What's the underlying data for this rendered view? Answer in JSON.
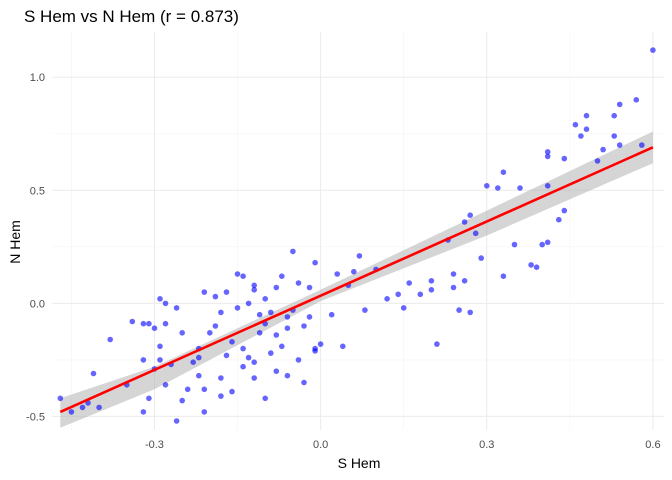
{
  "chart_data": {
    "type": "scatter",
    "title": "S Hem vs N Hem (r = 0.873)",
    "xlabel": "S Hem",
    "ylabel": "N Hem",
    "xlim": [
      -0.485,
      0.62
    ],
    "ylim": [
      -0.56,
      1.2
    ],
    "x_ticks": [
      -0.3,
      0.0,
      0.3,
      0.6
    ],
    "x_tick_labels": [
      "-0.3",
      "0.0",
      "0.3",
      "0.6"
    ],
    "y_ticks": [
      -0.5,
      0.0,
      0.5,
      1.0
    ],
    "y_tick_labels": [
      "-0.5",
      "0.0",
      "0.5",
      "1.0"
    ],
    "grid": true,
    "colors": {
      "points": "#0000ff",
      "fit_line": "#ff0000",
      "band": "#b3b3b3"
    },
    "fit_line": {
      "x": [
        -0.47,
        0.6
      ],
      "y": [
        -0.48,
        0.69
      ]
    },
    "confidence_band": {
      "x": [
        -0.47,
        -0.3,
        0.0,
        0.3,
        0.6
      ],
      "upper": [
        -0.42,
        -0.28,
        0.06,
        0.41,
        0.76
      ],
      "lower": [
        -0.55,
        -0.38,
        0.01,
        0.3,
        0.62
      ]
    },
    "points": [
      {
        "x": -0.47,
        "y": -0.42
      },
      {
        "x": -0.45,
        "y": -0.48
      },
      {
        "x": -0.43,
        "y": -0.46
      },
      {
        "x": -0.42,
        "y": -0.44
      },
      {
        "x": -0.41,
        "y": -0.31
      },
      {
        "x": -0.4,
        "y": -0.46
      },
      {
        "x": -0.38,
        "y": -0.16
      },
      {
        "x": -0.35,
        "y": -0.36
      },
      {
        "x": -0.34,
        "y": -0.08
      },
      {
        "x": -0.32,
        "y": -0.48
      },
      {
        "x": -0.32,
        "y": -0.25
      },
      {
        "x": -0.32,
        "y": -0.09
      },
      {
        "x": -0.31,
        "y": -0.42
      },
      {
        "x": -0.31,
        "y": -0.09
      },
      {
        "x": -0.3,
        "y": -0.29
      },
      {
        "x": -0.3,
        "y": -0.11
      },
      {
        "x": -0.29,
        "y": 0.02
      },
      {
        "x": -0.29,
        "y": -0.25
      },
      {
        "x": -0.29,
        "y": -0.19
      },
      {
        "x": -0.28,
        "y": -0.36
      },
      {
        "x": -0.28,
        "y": -0.09
      },
      {
        "x": -0.28,
        "y": 0.0
      },
      {
        "x": -0.27,
        "y": -0.27
      },
      {
        "x": -0.26,
        "y": -0.52
      },
      {
        "x": -0.26,
        "y": -0.02
      },
      {
        "x": -0.25,
        "y": -0.43
      },
      {
        "x": -0.25,
        "y": -0.13
      },
      {
        "x": -0.24,
        "y": -0.38
      },
      {
        "x": -0.23,
        "y": -0.26
      },
      {
        "x": -0.22,
        "y": -0.32
      },
      {
        "x": -0.22,
        "y": -0.24
      },
      {
        "x": -0.22,
        "y": -0.2
      },
      {
        "x": -0.21,
        "y": -0.48
      },
      {
        "x": -0.21,
        "y": -0.38
      },
      {
        "x": -0.21,
        "y": 0.05
      },
      {
        "x": -0.2,
        "y": -0.13
      },
      {
        "x": -0.19,
        "y": -0.1
      },
      {
        "x": -0.19,
        "y": 0.03
      },
      {
        "x": -0.18,
        "y": -0.41
      },
      {
        "x": -0.18,
        "y": -0.33
      },
      {
        "x": -0.18,
        "y": -0.04
      },
      {
        "x": -0.17,
        "y": -0.23
      },
      {
        "x": -0.17,
        "y": 0.05
      },
      {
        "x": -0.16,
        "y": -0.39
      },
      {
        "x": -0.16,
        "y": -0.17
      },
      {
        "x": -0.15,
        "y": -0.02
      },
      {
        "x": -0.15,
        "y": 0.13
      },
      {
        "x": -0.14,
        "y": -0.28
      },
      {
        "x": -0.14,
        "y": -0.2
      },
      {
        "x": -0.14,
        "y": 0.12
      },
      {
        "x": -0.13,
        "y": 0.0
      },
      {
        "x": -0.13,
        "y": -0.24
      },
      {
        "x": -0.12,
        "y": -0.33
      },
      {
        "x": -0.12,
        "y": -0.26
      },
      {
        "x": -0.12,
        "y": 0.06
      },
      {
        "x": -0.12,
        "y": 0.08
      },
      {
        "x": -0.11,
        "y": -0.05
      },
      {
        "x": -0.11,
        "y": -0.13
      },
      {
        "x": -0.1,
        "y": -0.42
      },
      {
        "x": -0.1,
        "y": -0.09
      },
      {
        "x": -0.1,
        "y": 0.02
      },
      {
        "x": -0.09,
        "y": -0.22
      },
      {
        "x": -0.09,
        "y": -0.04
      },
      {
        "x": -0.08,
        "y": -0.3
      },
      {
        "x": -0.08,
        "y": 0.07
      },
      {
        "x": -0.08,
        "y": -0.14
      },
      {
        "x": -0.07,
        "y": 0.12
      },
      {
        "x": -0.07,
        "y": -0.19
      },
      {
        "x": -0.06,
        "y": -0.32
      },
      {
        "x": -0.06,
        "y": -0.06
      },
      {
        "x": -0.06,
        "y": -0.11
      },
      {
        "x": -0.05,
        "y": 0.23
      },
      {
        "x": -0.05,
        "y": -0.03
      },
      {
        "x": -0.04,
        "y": -0.25
      },
      {
        "x": -0.04,
        "y": 0.09
      },
      {
        "x": -0.03,
        "y": -0.35
      },
      {
        "x": -0.03,
        "y": -0.1
      },
      {
        "x": -0.02,
        "y": 0.07
      },
      {
        "x": -0.02,
        "y": -0.06
      },
      {
        "x": -0.01,
        "y": 0.18
      },
      {
        "x": -0.01,
        "y": -0.2
      },
      {
        "x": -0.01,
        "y": -0.21
      },
      {
        "x": 0.0,
        "y": -0.18
      },
      {
        "x": 0.02,
        "y": -0.05
      },
      {
        "x": 0.03,
        "y": 0.13
      },
      {
        "x": 0.04,
        "y": -0.19
      },
      {
        "x": 0.05,
        "y": 0.08
      },
      {
        "x": 0.06,
        "y": 0.14
      },
      {
        "x": 0.07,
        "y": 0.21
      },
      {
        "x": 0.08,
        "y": -0.03
      },
      {
        "x": 0.1,
        "y": 0.15
      },
      {
        "x": 0.12,
        "y": 0.02
      },
      {
        "x": 0.14,
        "y": 0.04
      },
      {
        "x": 0.15,
        "y": -0.02
      },
      {
        "x": 0.16,
        "y": 0.09
      },
      {
        "x": 0.18,
        "y": 0.04
      },
      {
        "x": 0.2,
        "y": 0.06
      },
      {
        "x": 0.2,
        "y": 0.1
      },
      {
        "x": 0.21,
        "y": -0.18
      },
      {
        "x": 0.23,
        "y": 0.28
      },
      {
        "x": 0.24,
        "y": 0.13
      },
      {
        "x": 0.24,
        "y": 0.07
      },
      {
        "x": 0.25,
        "y": -0.03
      },
      {
        "x": 0.26,
        "y": 0.1
      },
      {
        "x": 0.26,
        "y": 0.36
      },
      {
        "x": 0.27,
        "y": -0.04
      },
      {
        "x": 0.27,
        "y": 0.39
      },
      {
        "x": 0.28,
        "y": 0.31
      },
      {
        "x": 0.29,
        "y": 0.2
      },
      {
        "x": 0.3,
        "y": 0.52
      },
      {
        "x": 0.32,
        "y": 0.51
      },
      {
        "x": 0.33,
        "y": 0.58
      },
      {
        "x": 0.33,
        "y": 0.12
      },
      {
        "x": 0.35,
        "y": 0.26
      },
      {
        "x": 0.36,
        "y": 0.51
      },
      {
        "x": 0.38,
        "y": 0.17
      },
      {
        "x": 0.39,
        "y": 0.16
      },
      {
        "x": 0.4,
        "y": 0.26
      },
      {
        "x": 0.41,
        "y": 0.27
      },
      {
        "x": 0.41,
        "y": 0.52
      },
      {
        "x": 0.41,
        "y": 0.67
      },
      {
        "x": 0.41,
        "y": 0.65
      },
      {
        "x": 0.43,
        "y": 0.37
      },
      {
        "x": 0.44,
        "y": 0.41
      },
      {
        "x": 0.44,
        "y": 0.64
      },
      {
        "x": 0.46,
        "y": 0.79
      },
      {
        "x": 0.47,
        "y": 0.74
      },
      {
        "x": 0.48,
        "y": 0.77
      },
      {
        "x": 0.48,
        "y": 0.83
      },
      {
        "x": 0.5,
        "y": 0.63
      },
      {
        "x": 0.51,
        "y": 0.68
      },
      {
        "x": 0.53,
        "y": 0.74
      },
      {
        "x": 0.53,
        "y": 0.83
      },
      {
        "x": 0.54,
        "y": 0.88
      },
      {
        "x": 0.54,
        "y": 0.7
      },
      {
        "x": 0.57,
        "y": 0.9
      },
      {
        "x": 0.58,
        "y": 0.7
      },
      {
        "x": 0.6,
        "y": 1.12
      }
    ]
  }
}
